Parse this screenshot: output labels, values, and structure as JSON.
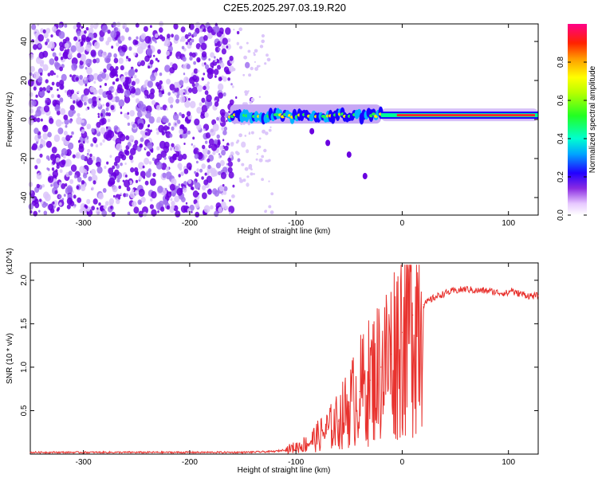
{
  "figure_title": "C2E5.2025.297.03.19.R20",
  "colors": {
    "snr_line": "#e8322e",
    "spectrogram_noise": "#6a00e0",
    "axis": "#000000"
  },
  "chart_data": [
    {
      "type": "heatmap",
      "name": "spectrogram",
      "title": "C2E5.2025.297.03.19.R20",
      "xlabel": "Height of straight line (km)",
      "ylabel": "Frequency (Hz)",
      "xlim": [
        -350,
        128
      ],
      "ylim": [
        -49,
        49
      ],
      "xticks": [
        "-300",
        "-200",
        "-100",
        "0",
        "100"
      ],
      "xtick_values": [
        -300,
        -200,
        -100,
        0,
        100
      ],
      "yticks": [
        "-40",
        "-20",
        "0",
        "20",
        "40"
      ],
      "ytick_values": [
        -40,
        -20,
        0,
        20,
        40
      ],
      "colorbar": {
        "label": "Normalized spectral amplitude",
        "range": [
          0,
          1
        ],
        "ticks": [
          "0.0",
          "0.2",
          "0.4",
          "0.6",
          "0.8"
        ],
        "tick_values": [
          0.0,
          0.2,
          0.4,
          0.6,
          0.8
        ]
      },
      "features": [
        {
          "name": "noise floor",
          "x_range": [
            -350,
            -160
          ],
          "y_range": [
            -49,
            49
          ],
          "amplitude": 0.2
        },
        {
          "name": "carrier signal",
          "x_range": [
            -162,
            128
          ],
          "center_hz": 2,
          "amplitude": 1.0
        },
        {
          "name": "secondary trace",
          "points": [
            [
              -85,
              -6
            ],
            [
              -70,
              -12
            ],
            [
              -50,
              -18
            ],
            [
              -35,
              -29
            ]
          ],
          "amplitude": 0.2
        }
      ]
    },
    {
      "type": "line",
      "name": "snr",
      "xlabel": "Height of straight line (km)",
      "ylabel": "SNR (10 * v/v)",
      "y_multiplier": "(x10^4)",
      "xlim": [
        -350,
        128
      ],
      "ylim": [
        0,
        2.2
      ],
      "xticks": [
        "-300",
        "-200",
        "-100",
        "0",
        "100"
      ],
      "xtick_values": [
        -300,
        -200,
        -100,
        0,
        100
      ],
      "yticks": [
        "0.5",
        "1.0",
        "1.5",
        "2.0"
      ],
      "ytick_values": [
        0.5,
        1.0,
        1.5,
        2.0
      ],
      "series": [
        {
          "name": "SNR",
          "x": [
            -350,
            -300,
            -250,
            -200,
            -150,
            -120,
            -110,
            -100,
            -90,
            -80,
            -70,
            -60,
            -50,
            -40,
            -30,
            -20,
            -10,
            0,
            10,
            20,
            30,
            40,
            50,
            60,
            70,
            80,
            90,
            100,
            103,
            106,
            110,
            120,
            128
          ],
          "y": [
            0.02,
            0.02,
            0.02,
            0.02,
            0.02,
            0.03,
            0.05,
            0.08,
            0.12,
            0.2,
            0.28,
            0.38,
            0.55,
            0.72,
            0.85,
            1.0,
            1.15,
            1.4,
            1.6,
            1.72,
            1.8,
            1.85,
            1.88,
            1.9,
            1.88,
            1.88,
            1.86,
            1.85,
            1.9,
            1.85,
            1.85,
            1.82,
            1.82
          ]
        }
      ]
    }
  ]
}
